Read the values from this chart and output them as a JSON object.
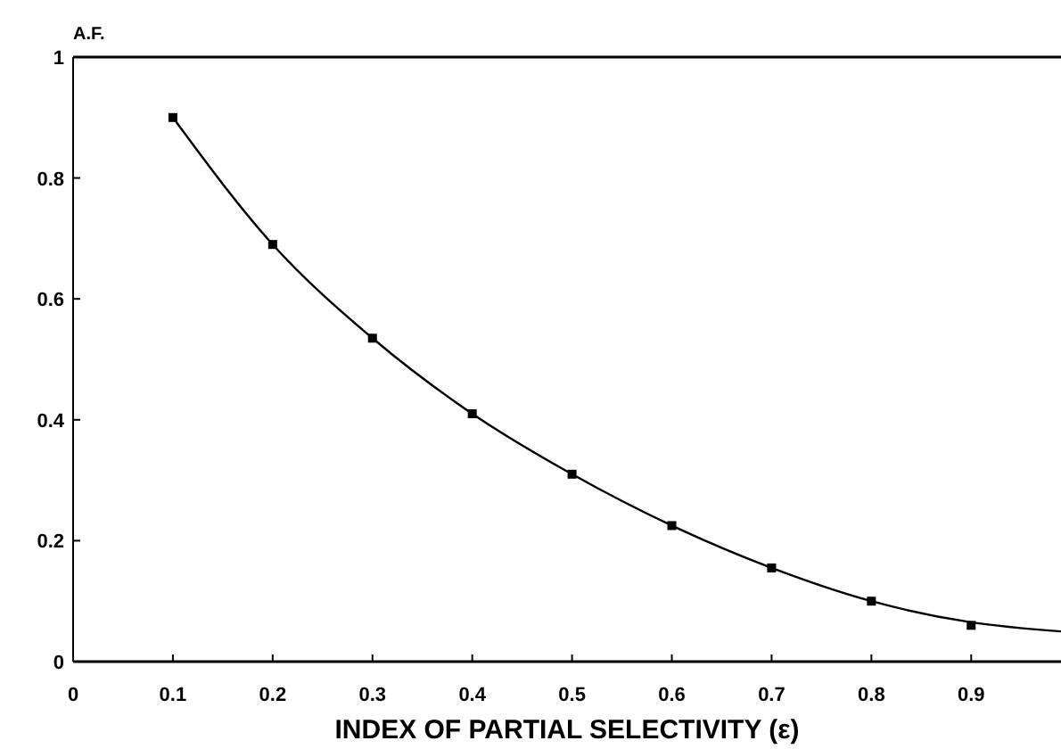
{
  "chart_data": {
    "type": "scatter",
    "xlabel": "INDEX OF PARTIAL SELECTIVITY  (ε)",
    "ylabel": "A.F.",
    "xlim": [
      0,
      0.99
    ],
    "ylim": [
      0,
      1
    ],
    "xticks": [
      0,
      0.1,
      0.2,
      0.3,
      0.4,
      0.5,
      0.6,
      0.7,
      0.8,
      0.9
    ],
    "yticks": [
      0,
      0.2,
      0.4,
      0.6,
      0.8,
      1
    ],
    "grid": false,
    "marker": "square",
    "series": [
      {
        "type": "scatter",
        "color": "#000000",
        "x": [
          0.1,
          0.2,
          0.3,
          0.4,
          0.5,
          0.6,
          0.7,
          0.8,
          0.9
        ],
        "values": [
          0.9,
          0.69,
          0.535,
          0.41,
          0.31,
          0.225,
          0.155,
          0.1,
          0.06
        ]
      },
      {
        "type": "line",
        "color": "#000000",
        "line_style": "solid",
        "marker": "none",
        "x": [
          0.1,
          0.2,
          0.3,
          0.4,
          0.5,
          0.6,
          0.7,
          0.8,
          0.9,
          0.99
        ],
        "values": [
          0.9,
          0.69,
          0.535,
          0.41,
          0.31,
          0.225,
          0.155,
          0.1,
          0.065,
          0.05
        ]
      }
    ]
  }
}
